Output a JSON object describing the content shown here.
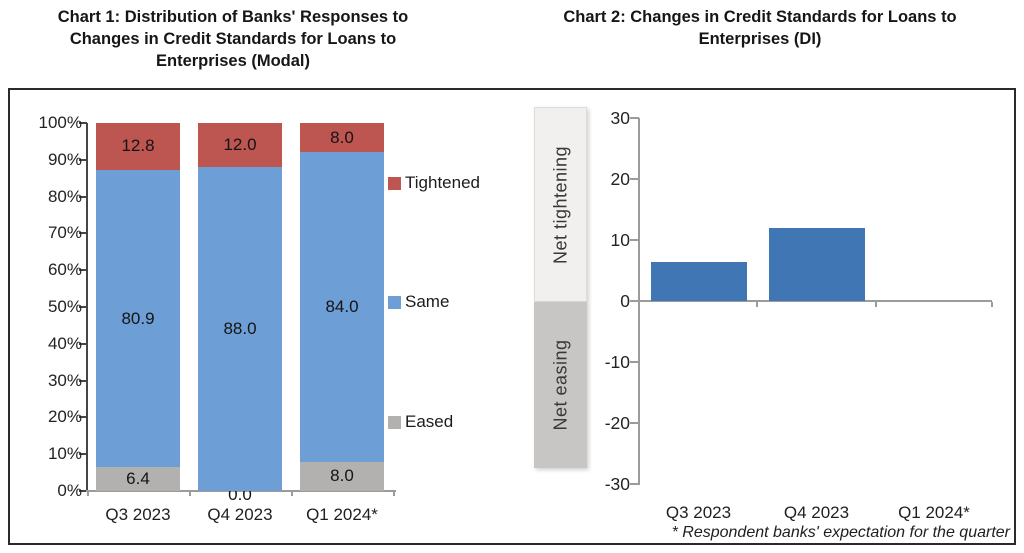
{
  "page": {
    "footnote": "* Respondent banks' expectation for the quarter"
  },
  "chart_data": [
    {
      "type": "bar",
      "stacked": true,
      "title": "Chart 1: Distribution of Banks' Responses to Changes in Credit Standards for Loans to Enterprises (Modal)",
      "categories": [
        "Q3 2023",
        "Q4 2023",
        "Q1 2024*"
      ],
      "series": [
        {
          "name": "Eased",
          "color": "#b3b1b0",
          "values": [
            6.4,
            0.0,
            8.0
          ]
        },
        {
          "name": "Same",
          "color": "#6d9ed6",
          "values": [
            80.9,
            88.0,
            84.0
          ]
        },
        {
          "name": "Tightened",
          "color": "#bd5550",
          "values": [
            12.8,
            12.0,
            8.0
          ]
        }
      ],
      "legend": [
        {
          "label": "Tightened",
          "color": "#bd5550"
        },
        {
          "label": "Same",
          "color": "#6d9ed6"
        },
        {
          "label": "Eased",
          "color": "#b3b1b0"
        }
      ],
      "ylabel": "",
      "ylim": [
        0,
        100
      ],
      "y_ticks": [
        "100%",
        "90%",
        "80%",
        "70%",
        "60%",
        "50%",
        "40%",
        "30%",
        "20%",
        "10%",
        "0%"
      ],
      "legend_position": "right",
      "grid": false,
      "value_label_decimals": 1
    },
    {
      "type": "bar",
      "title": "Chart 2: Changes in Credit Standards for Loans to Enterprises (DI)",
      "categories": [
        "Q3 2023",
        "Q4 2023",
        "Q1 2024*"
      ],
      "values": [
        6.4,
        12.0,
        0.0
      ],
      "bar_color": "#4076b4",
      "ylim": [
        -30,
        30
      ],
      "y_ticks": [
        "30",
        "20",
        "10",
        "0",
        "-10",
        "-20",
        "-30"
      ],
      "annotations": [
        {
          "text": "Net tightening",
          "zone": "positive"
        },
        {
          "text": "Net easing",
          "zone": "negative"
        }
      ],
      "footnote": "* Respondent banks' expectation for the quarter",
      "grid": false
    }
  ]
}
